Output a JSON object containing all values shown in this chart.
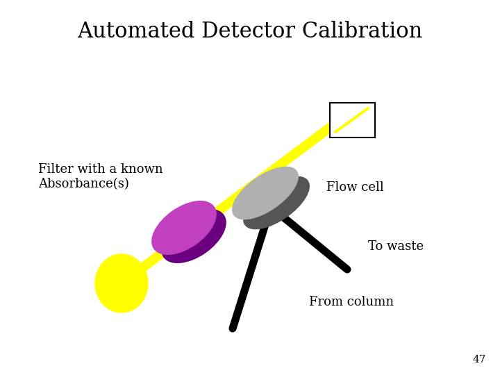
{
  "title": "Automated Detector Calibration",
  "title_fontsize": 22,
  "background_color": "#ffffff",
  "slide_number": "47",
  "labels": {
    "filter": "Filter with a known\nAbsorbance(s)",
    "flow_cell": "Flow cell",
    "to_waste": "To waste",
    "from_column": "From column"
  },
  "label_fontsize": 13,
  "colors": {
    "yellow_beam": "#ffff00",
    "purple_filter_face": "#c040c0",
    "purple_filter_side": "#7a1090",
    "gray_cell_face": "#b0b0b0",
    "gray_cell_side": "#606060",
    "yellow_lamp": "#ffff00",
    "black_tube": "#000000",
    "detector_box_edge": "#000000"
  }
}
